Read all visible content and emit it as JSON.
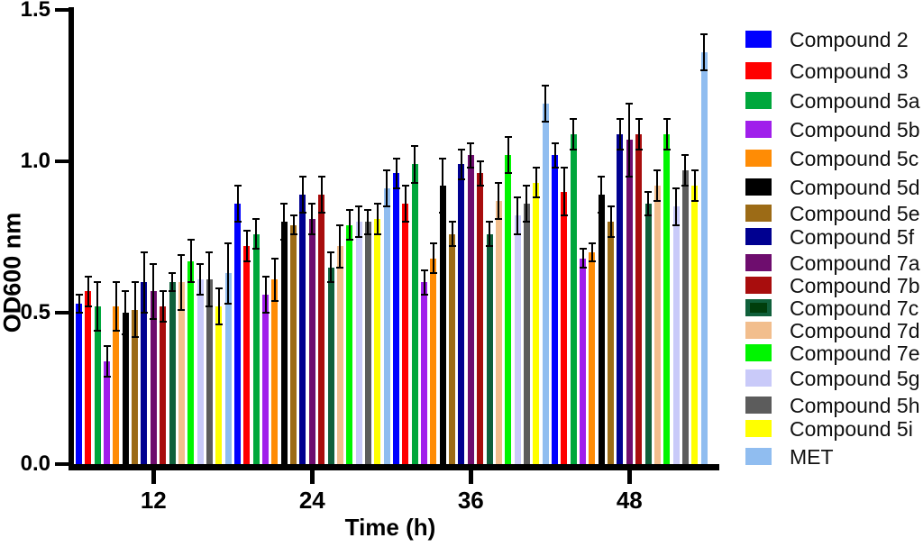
{
  "chart_data": {
    "type": "bar",
    "title": "",
    "xlabel": "Time (h)",
    "ylabel": "OD600 nm",
    "ylim": [
      0,
      1.5
    ],
    "yticks": [
      0.0,
      0.5,
      1.0,
      1.5
    ],
    "ytick_labels": [
      "0.0",
      "0.5",
      "1.0",
      "1.5"
    ],
    "categories": [
      "12",
      "24",
      "36",
      "48"
    ],
    "grid": false,
    "error_bars": true,
    "legend_position": "right",
    "series": [
      {
        "name": "Compound 2",
        "color": "#0000FF",
        "values": [
          0.53,
          0.86,
          0.96,
          1.02
        ],
        "errors": [
          0.03,
          0.06,
          0.05,
          0.04
        ]
      },
      {
        "name": "Compound 3",
        "color": "#FF0000",
        "values": [
          0.57,
          0.72,
          0.86,
          0.9
        ],
        "errors": [
          0.05,
          0.05,
          0.06,
          0.08
        ]
      },
      {
        "name": "Compound 5a",
        "color": "#00A73C",
        "values": [
          0.52,
          0.76,
          0.99,
          1.09
        ],
        "errors": [
          0.08,
          0.05,
          0.06,
          0.05
        ]
      },
      {
        "name": "Compound 5b",
        "color": "#A01FEB",
        "values": [
          0.34,
          0.56,
          0.6,
          0.68
        ],
        "errors": [
          0.05,
          0.06,
          0.04,
          0.03
        ]
      },
      {
        "name": "Compound 5c",
        "color": "#FF8C05",
        "values": [
          0.52,
          0.61,
          0.68,
          0.7
        ],
        "errors": [
          0.08,
          0.07,
          0.05,
          0.03
        ]
      },
      {
        "name": "Compound 5d",
        "color": "#000000",
        "values": [
          0.5,
          0.8,
          0.92,
          0.89
        ],
        "errors": [
          0.07,
          0.06,
          0.09,
          0.06
        ]
      },
      {
        "name": "Compound 5e",
        "color": "#9C6B16",
        "values": [
          0.51,
          0.79,
          0.76,
          0.8
        ],
        "errors": [
          0.09,
          0.03,
          0.04,
          0.05
        ]
      },
      {
        "name": "Compound 5f",
        "color": "#000090",
        "values": [
          0.6,
          0.89,
          0.99,
          1.09
        ],
        "errors": [
          0.1,
          0.06,
          0.05,
          0.05
        ]
      },
      {
        "name": "Compound 7a",
        "color": "#6E0D6E",
        "values": [
          0.57,
          0.81,
          1.02,
          1.07
        ],
        "errors": [
          0.09,
          0.05,
          0.04,
          0.12
        ]
      },
      {
        "name": "Compound 7b",
        "color": "#A80D0D",
        "values": [
          0.52,
          0.89,
          0.96,
          1.09
        ],
        "errors": [
          0.05,
          0.06,
          0.04,
          0.05
        ]
      },
      {
        "name": "Compound 7c",
        "color": "#10603B",
        "swatch_inner": "#003E0C",
        "values": [
          0.6,
          0.65,
          0.76,
          0.86
        ],
        "errors": [
          0.03,
          0.05,
          0.04,
          0.04
        ]
      },
      {
        "name": "Compound 7d",
        "color": "#F2BE8D",
        "values": [
          0.6,
          0.72,
          0.87,
          0.92
        ],
        "errors": [
          0.09,
          0.07,
          0.06,
          0.05
        ]
      },
      {
        "name": "Compound 7e",
        "color": "#00F500",
        "values": [
          0.67,
          0.79,
          1.02,
          1.09
        ],
        "errors": [
          0.07,
          0.05,
          0.06,
          0.05
        ]
      },
      {
        "name": "Compound 5g",
        "color": "#C9CAF9",
        "values": [
          0.61,
          0.8,
          0.82,
          0.85
        ],
        "errors": [
          0.05,
          0.05,
          0.06,
          0.06
        ]
      },
      {
        "name": "Compound 5h",
        "color": "#5C5C5C",
        "values": [
          0.61,
          0.8,
          0.86,
          0.97
        ],
        "errors": [
          0.09,
          0.04,
          0.06,
          0.05
        ]
      },
      {
        "name": "Compound 5i",
        "color": "#FFFF00",
        "values": [
          0.52,
          0.81,
          0.93,
          0.92
        ],
        "errors": [
          0.06,
          0.05,
          0.05,
          0.05
        ]
      },
      {
        "name": "MET",
        "color": "#90BDF0",
        "values": [
          0.63,
          0.91,
          1.19,
          1.36
        ],
        "errors": [
          0.1,
          0.06,
          0.06,
          0.06
        ]
      }
    ]
  }
}
